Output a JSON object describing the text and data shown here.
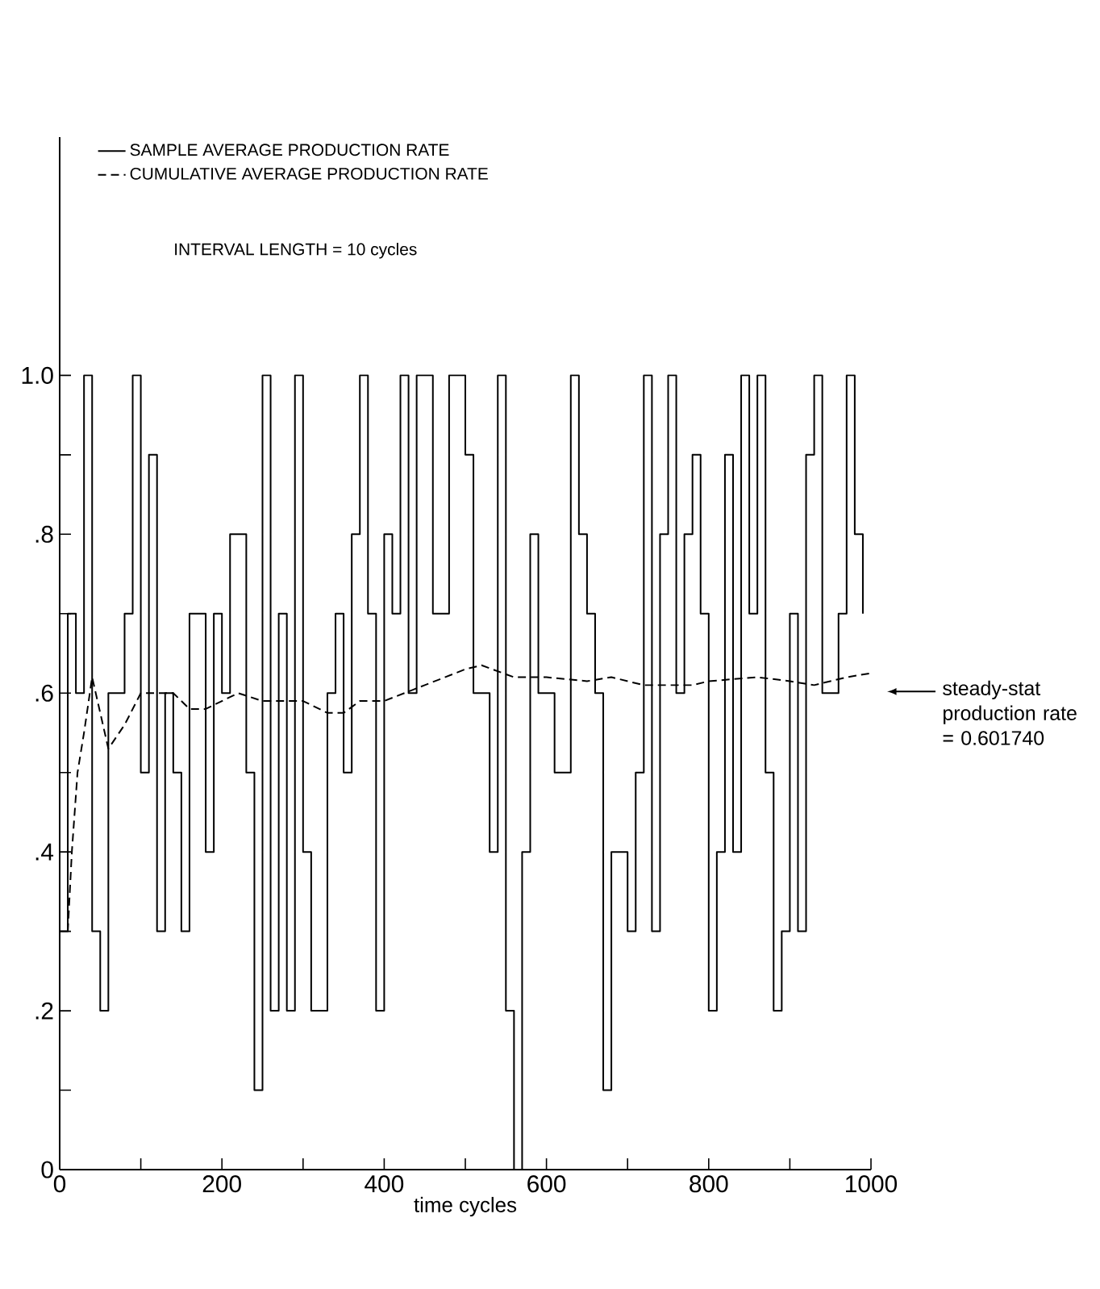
{
  "chart_data": {
    "type": "step",
    "xlabel": "time cycles",
    "xlim": [
      0,
      1000
    ],
    "xticks": [
      0,
      {
        "value": 100,
        "label": null
      },
      200,
      {
        "value": 300,
        "label": null
      },
      400,
      {
        "value": 500,
        "label": null
      },
      600,
      {
        "value": 700,
        "label": null
      },
      800,
      {
        "value": 900,
        "label": null
      },
      1000
    ],
    "ylim": [
      0,
      1.3
    ],
    "yticks": [
      0,
      {
        "value": 0.1,
        "label": null
      },
      {
        "value": 0.2,
        "label": ".2"
      },
      {
        "value": 0.3,
        "label": null
      },
      {
        "value": 0.4,
        "label": ".4"
      },
      {
        "value": 0.5,
        "label": null
      },
      {
        "value": 0.6,
        "label": ".6"
      },
      {
        "value": 0.7,
        "label": null
      },
      {
        "value": 0.8,
        "label": ".8"
      },
      {
        "value": 0.9,
        "label": null
      },
      {
        "value": 1.0,
        "label": "1.0"
      }
    ],
    "legend": "top left",
    "series": [
      {
        "name": "SAMPLE AVERAGE PRODUCTION RATE",
        "color": "#000000",
        "line_style": "solid",
        "x": [
          0,
          10,
          20,
          30,
          40,
          50,
          60,
          70,
          80,
          90,
          100,
          110,
          120,
          130,
          140,
          150,
          160,
          170,
          180,
          190,
          200,
          210,
          220,
          230,
          240,
          250,
          260,
          270,
          280,
          290,
          300,
          310,
          320,
          330,
          340,
          350,
          360,
          370,
          380,
          390,
          400,
          410,
          420,
          430,
          440,
          450,
          460,
          470,
          480,
          490,
          500,
          510,
          520,
          530,
          540,
          550,
          560,
          570,
          580,
          590,
          600,
          610,
          620,
          630,
          640,
          650,
          660,
          670,
          680,
          690,
          700,
          710,
          720,
          730,
          740,
          750,
          760,
          770,
          780,
          790,
          800,
          810,
          820,
          830,
          840,
          850,
          860,
          870,
          880,
          890,
          900,
          910,
          920,
          930,
          940,
          950,
          960,
          970,
          980,
          990
        ],
        "values": [
          0.3,
          0.7,
          0.6,
          1.0,
          0.3,
          0.2,
          0.6,
          0.6,
          0.7,
          1.0,
          0.5,
          0.9,
          0.3,
          0.6,
          0.5,
          0.3,
          0.7,
          0.7,
          0.4,
          0.7,
          0.6,
          0.8,
          0.8,
          0.5,
          0.1,
          1.0,
          0.2,
          0.7,
          0.2,
          1.0,
          0.4,
          0.2,
          0.2,
          0.6,
          0.7,
          0.5,
          0.8,
          1.0,
          0.7,
          0.2,
          0.8,
          0.7,
          1.0,
          0.6,
          1.0,
          1.0,
          0.7,
          0.7,
          1.0,
          1.0,
          0.9,
          0.6,
          0.6,
          0.4,
          1.0,
          0.2,
          0,
          0.4,
          0.8,
          0.6,
          0.6,
          0.5,
          0.5,
          1.0,
          0.8,
          0.7,
          0.6,
          0.1,
          0.4,
          0.4,
          0.3,
          0.5,
          1.0,
          0.3,
          0.8,
          1.0,
          0.6,
          0.8,
          0.9,
          0.7,
          0.2,
          0.4,
          0.9,
          0.4,
          1.0,
          0.7,
          1.0,
          0.5,
          0.2,
          0.3,
          0.7,
          0.3,
          0.9,
          1.0,
          0.6,
          0.6,
          0.7,
          1.0,
          0.8,
          0.7
        ]
      },
      {
        "name": "CUMULATIVE AVERAGE PRODUCTION RATE",
        "type": "line",
        "color": "#000000",
        "line_style": "dashed",
        "x": [
          10,
          15,
          22,
          30,
          40,
          60,
          80,
          100,
          120,
          140,
          160,
          180,
          220,
          250,
          280,
          300,
          330,
          350,
          370,
          400,
          450,
          500,
          520,
          560,
          600,
          650,
          680,
          720,
          780,
          800,
          860,
          900,
          930,
          970,
          1000
        ],
        "values": [
          0.3,
          0.4,
          0.5,
          0.55,
          0.62,
          0.53,
          0.56,
          0.6,
          0.6,
          0.6,
          0.58,
          0.58,
          0.6,
          0.59,
          0.59,
          0.59,
          0.575,
          0.575,
          0.59,
          0.59,
          0.61,
          0.63,
          0.635,
          0.62,
          0.62,
          0.615,
          0.62,
          0.61,
          0.61,
          0.615,
          0.62,
          0.615,
          0.61,
          0.62,
          0.625
        ]
      }
    ],
    "annotations": [
      "INTERVAL LENGTH = 10 cycles",
      "steady-stat production rate = 0.601740"
    ]
  }
}
